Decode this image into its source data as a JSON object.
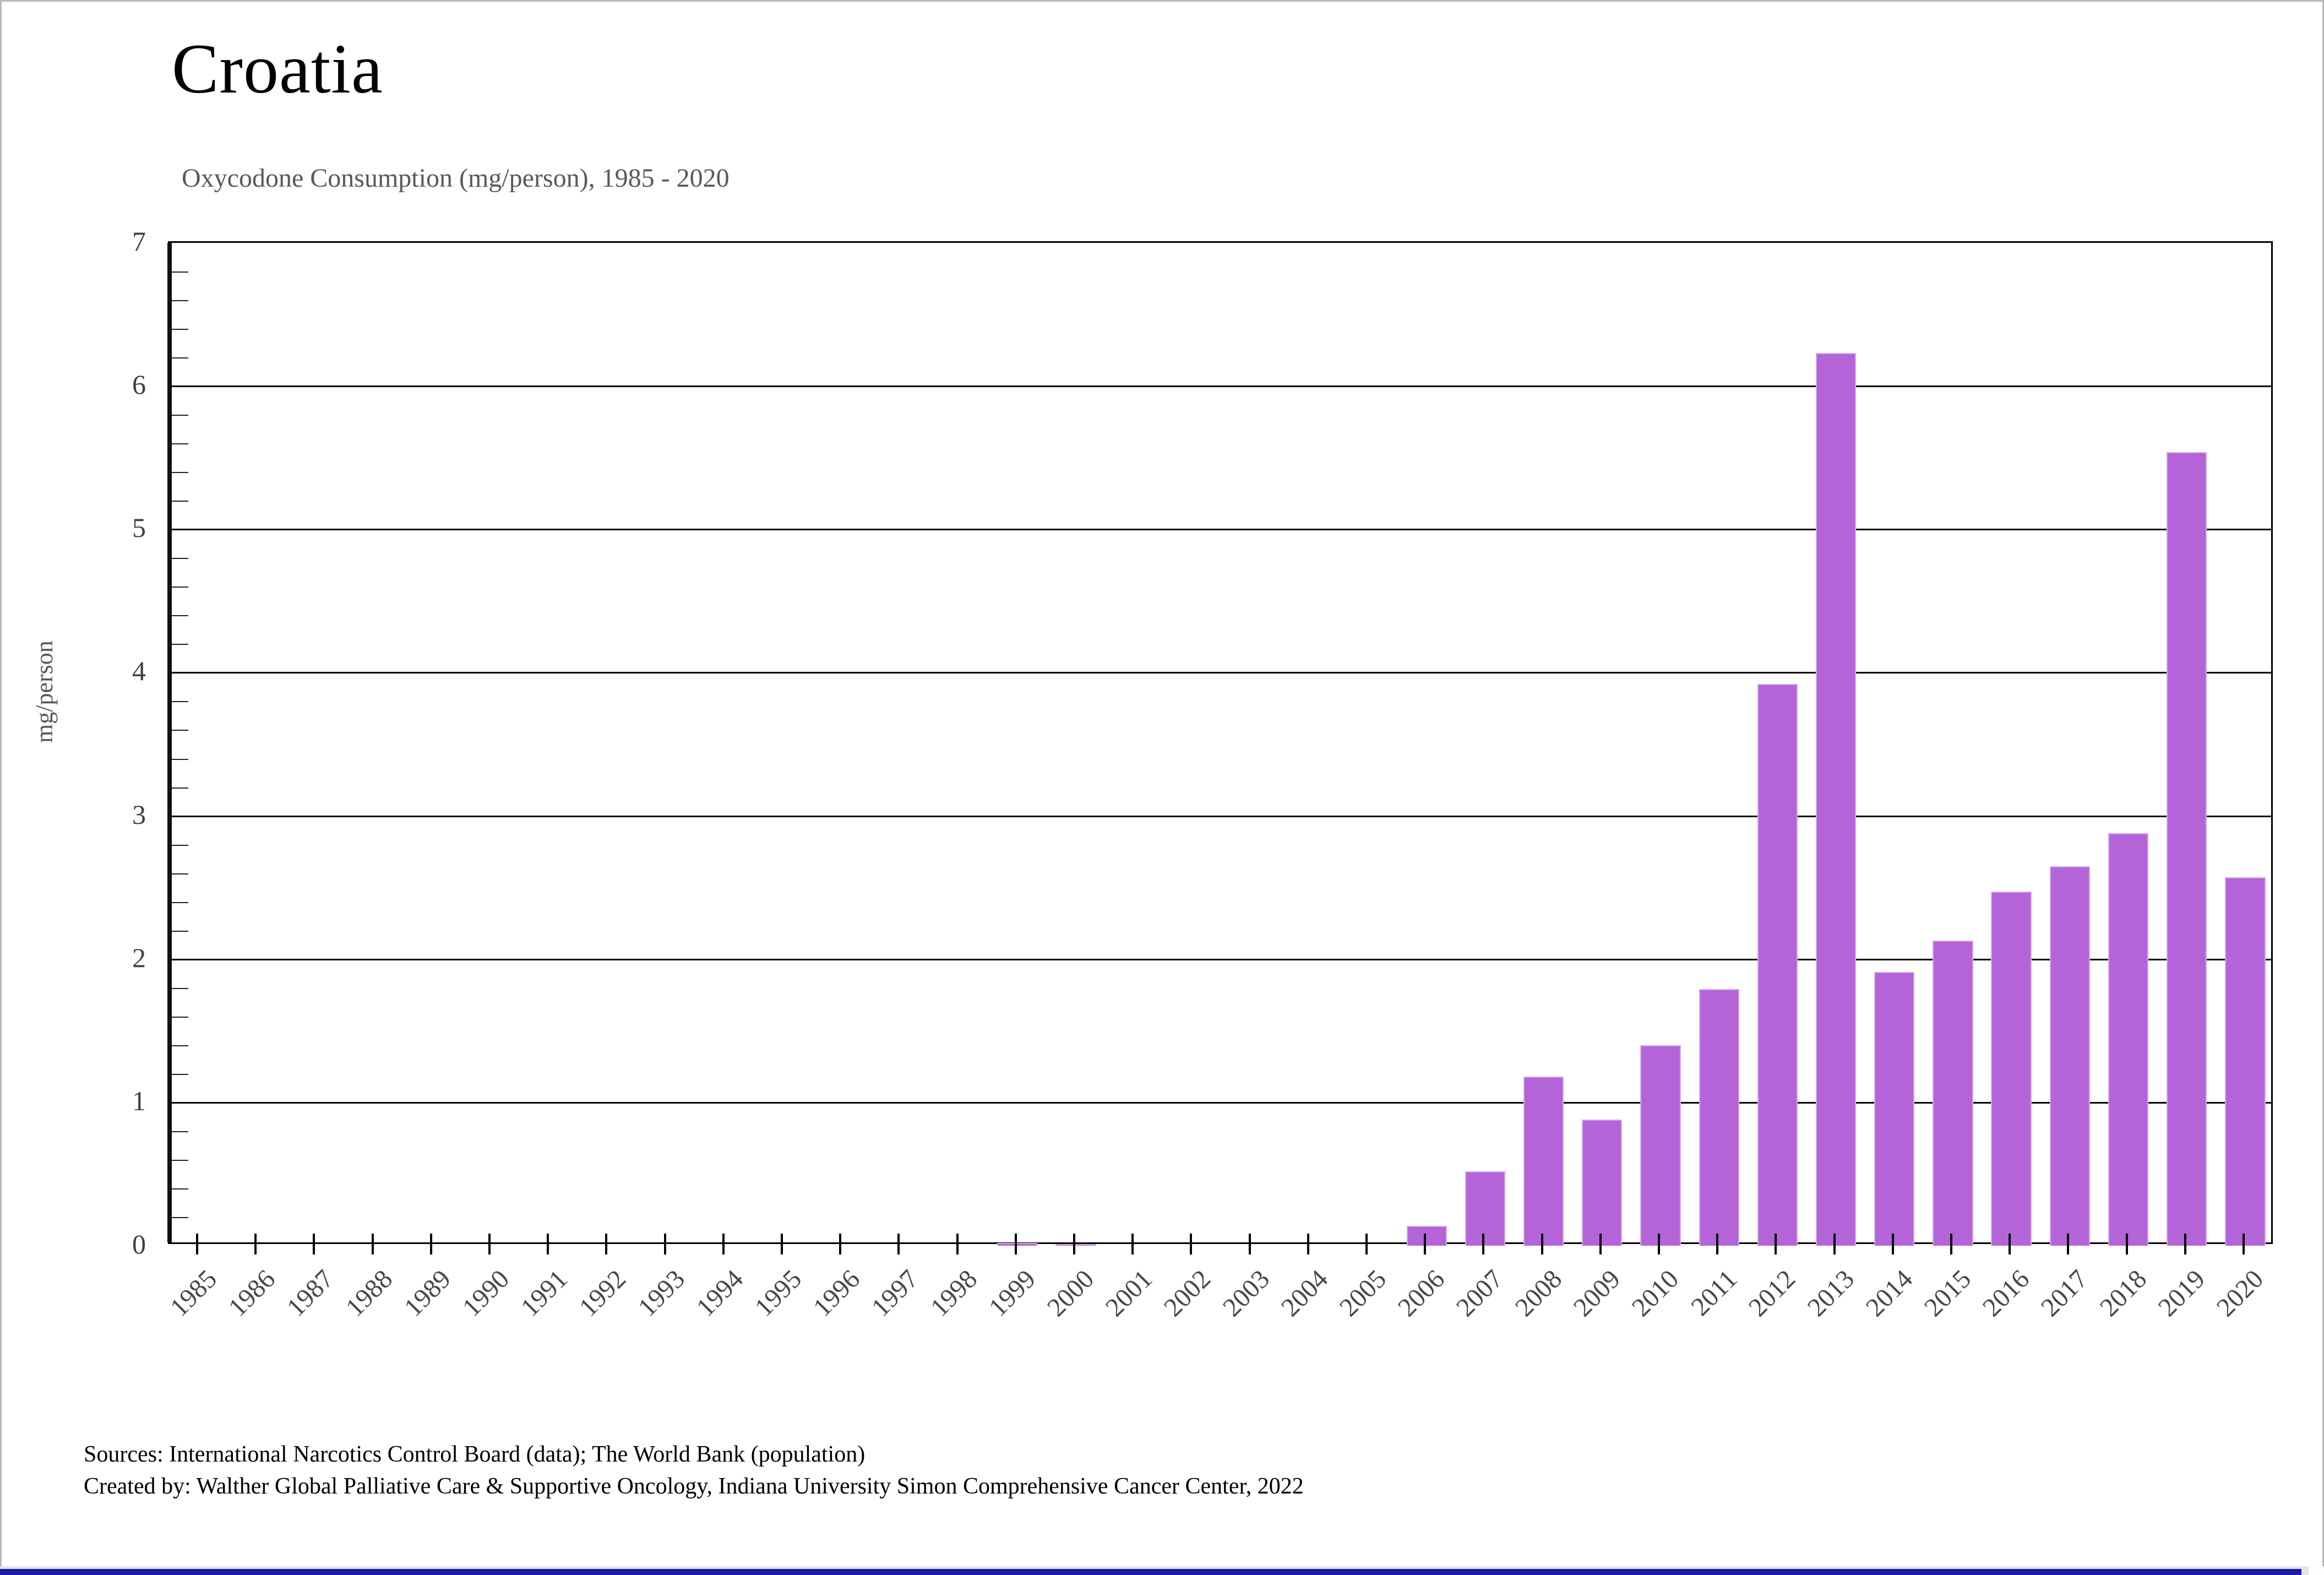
{
  "title": "Croatia",
  "subtitle": "Oxycodone Consumption (mg/person), 1985 - 2020",
  "y_axis": {
    "label": "mg/person",
    "min": 0,
    "max": 7,
    "tick_interval": 1,
    "minor_tick_interval": 0.2
  },
  "footer": {
    "source_line1": "Sources: International Narcotics Control Board (data); The World Bank (population)",
    "source_line2": "Created by: Walther Global Palliative Care & Supportive Oncology, Indiana University Simon Comprehensive Cancer Center, 2022"
  },
  "colors": {
    "bar_fill": "#b464d8",
    "bar_border": "#d4a9ea",
    "gridline": "#000000",
    "subtitle_text": "#595959",
    "axis_text": "#474747",
    "scrollbar_thumb": "#1b1ba6",
    "scrollbar_track": "#e4e4e4"
  },
  "chart_data": {
    "type": "bar",
    "title": "Croatia",
    "subtitle": "Oxycodone Consumption (mg/person), 1985 - 2020",
    "xlabel": "",
    "ylabel": "mg/person",
    "ylim": [
      0,
      7
    ],
    "grid": true,
    "legend": false,
    "categories": [
      "1985",
      "1986",
      "1987",
      "1988",
      "1989",
      "1990",
      "1991",
      "1992",
      "1993",
      "1994",
      "1995",
      "1996",
      "1997",
      "1998",
      "1999",
      "2000",
      "2001",
      "2002",
      "2003",
      "2004",
      "2005",
      "2006",
      "2007",
      "2008",
      "2009",
      "2010",
      "2011",
      "2012",
      "2013",
      "2014",
      "2015",
      "2016",
      "2017",
      "2018",
      "2019",
      "2020"
    ],
    "values": [
      0,
      0,
      0,
      0,
      0,
      0,
      0,
      0,
      0,
      0,
      0,
      0,
      0,
      0,
      0.02,
      0.01,
      0,
      0,
      0,
      0,
      0,
      0.14,
      0.52,
      1.18,
      0.88,
      1.4,
      1.79,
      3.92,
      6.23,
      1.91,
      2.13,
      2.47,
      2.65,
      2.88,
      5.54,
      2.57
    ]
  }
}
